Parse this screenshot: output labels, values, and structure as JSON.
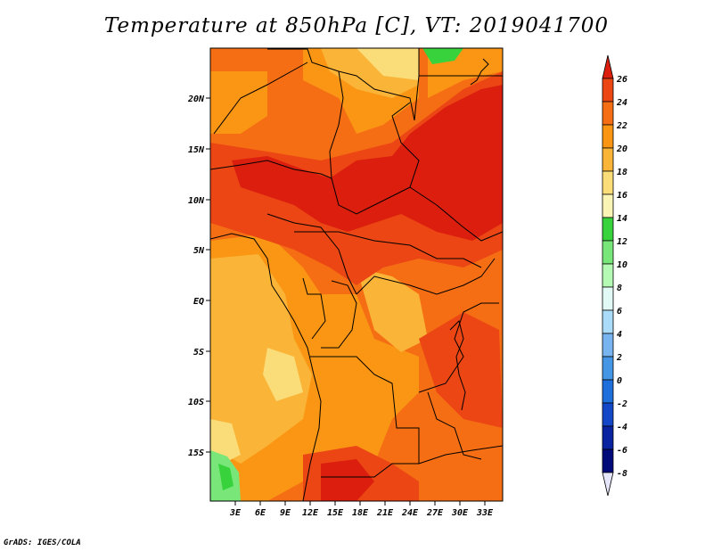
{
  "title": "Temperature at 850hPa [C], VT: 2019041700",
  "credit": "GrADS: IGES/COLA",
  "axes": {
    "lat_labels": [
      "20N",
      "15N",
      "10N",
      "5N",
      "EQ",
      "5S",
      "10S",
      "15S"
    ],
    "lon_labels": [
      "3E",
      "6E",
      "9E",
      "12E",
      "15E",
      "18E",
      "21E",
      "24E",
      "27E",
      "30E",
      "33E"
    ]
  },
  "colorbar": {
    "labels": [
      "26",
      "24",
      "22",
      "20",
      "18",
      "16",
      "14",
      "12",
      "10",
      "8",
      "6",
      "4",
      "2",
      "0",
      "-2",
      "-4",
      "-6",
      "-8"
    ],
    "colors": [
      "#dc1e0f",
      "#eb4614",
      "#f56e14",
      "#fa9614",
      "#fab437",
      "#fadc78",
      "#faf5b4",
      "#37d23c",
      "#78e678",
      "#b4fab4",
      "#e1faf5",
      "#aadcfa",
      "#78b4f0",
      "#4696e6",
      "#1e6edc",
      "#1446c8",
      "#0a23a0",
      "#000a78",
      "#e6e6fa"
    ]
  }
}
